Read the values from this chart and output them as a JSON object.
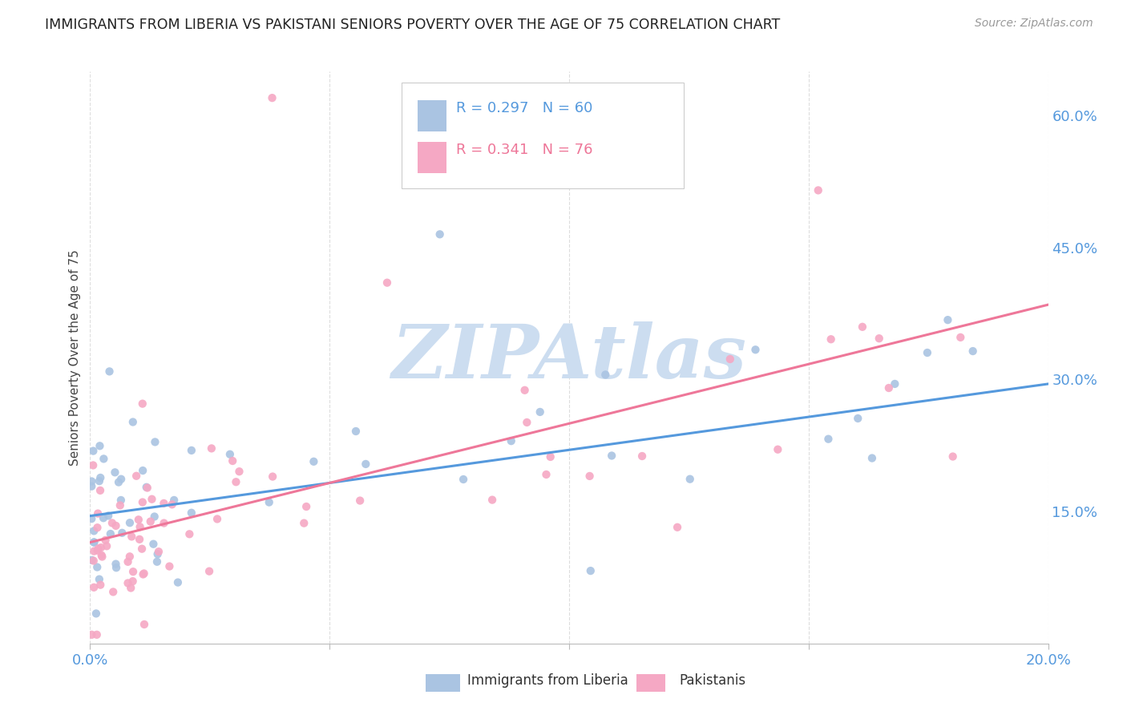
{
  "title": "IMMIGRANTS FROM LIBERIA VS PAKISTANI SENIORS POVERTY OVER THE AGE OF 75 CORRELATION CHART",
  "source": "Source: ZipAtlas.com",
  "ylabel": "Seniors Poverty Over the Age of 75",
  "watermark": "ZIPAtlas",
  "blue_label": "Immigrants from Liberia",
  "pink_label": "Pakistanis",
  "blue_R": 0.297,
  "blue_N": 60,
  "pink_R": 0.341,
  "pink_N": 76,
  "blue_color": "#aac4e2",
  "pink_color": "#f5a8c4",
  "blue_line_color": "#5599dd",
  "pink_line_color": "#ee7799",
  "xlim": [
    0.0,
    0.2
  ],
  "ylim": [
    0.0,
    0.65
  ],
  "right_yticks": [
    0.15,
    0.3,
    0.45,
    0.6
  ],
  "right_ytick_labels": [
    "15.0%",
    "30.0%",
    "45.0%",
    "60.0%"
  ],
  "blue_trend": [
    0.145,
    0.295
  ],
  "pink_trend": [
    0.115,
    0.385
  ],
  "background_color": "#ffffff",
  "grid_color": "#dddddd",
  "title_color": "#222222",
  "watermark_color": "#ccddf0"
}
